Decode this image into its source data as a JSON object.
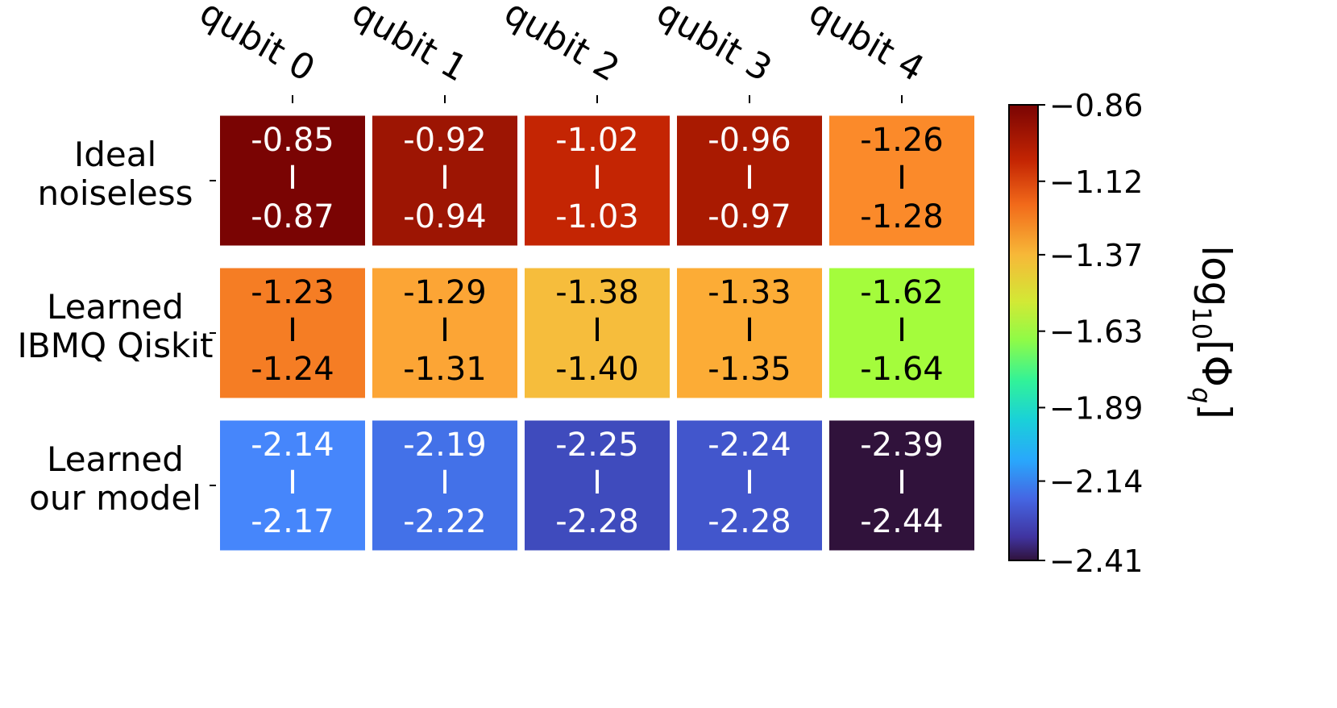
{
  "chart_data": {
    "type": "heatmap",
    "title": "",
    "columns": [
      "qubit 0",
      "qubit 1",
      "qubit 2",
      "qubit 3",
      "qubit 4"
    ],
    "rows": [
      [
        "Ideal",
        "noiseless"
      ],
      [
        "Learned",
        "IBMQ Qiskit"
      ],
      [
        "Learned",
        "our model"
      ]
    ],
    "cells": [
      [
        {
          "upper": "-0.85",
          "lower": "-0.87",
          "separator": "I",
          "color": "#7a0403",
          "text_color": "#ffffff"
        },
        {
          "upper": "-0.92",
          "lower": "-0.94",
          "separator": "I",
          "color": "#9d1503",
          "text_color": "#ffffff"
        },
        {
          "upper": "-1.02",
          "lower": "-1.03",
          "separator": "I",
          "color": "#c42503",
          "text_color": "#ffffff"
        },
        {
          "upper": "-0.96",
          "lower": "-0.97",
          "separator": "I",
          "color": "#a91a01",
          "text_color": "#ffffff"
        },
        {
          "upper": "-1.26",
          "lower": "-1.28",
          "separator": "I",
          "color": "#fb8a2a",
          "text_color": "#000000"
        }
      ],
      [
        {
          "upper": "-1.23",
          "lower": "-1.24",
          "separator": "I",
          "color": "#f57d24",
          "text_color": "#000000"
        },
        {
          "upper": "-1.29",
          "lower": "-1.31",
          "separator": "I",
          "color": "#fca535",
          "text_color": "#000000"
        },
        {
          "upper": "-1.38",
          "lower": "-1.40",
          "separator": "I",
          "color": "#f6bd3c",
          "text_color": "#000000"
        },
        {
          "upper": "-1.33",
          "lower": "-1.35",
          "separator": "I",
          "color": "#fcac36",
          "text_color": "#000000"
        },
        {
          "upper": "-1.62",
          "lower": "-1.64",
          "separator": "I",
          "color": "#a4fc3c",
          "text_color": "#000000"
        }
      ],
      [
        {
          "upper": "-2.14",
          "lower": "-2.17",
          "separator": "I",
          "color": "#4686fb",
          "text_color": "#ffffff"
        },
        {
          "upper": "-2.19",
          "lower": "-2.22",
          "separator": "I",
          "color": "#4371e8",
          "text_color": "#ffffff"
        },
        {
          "upper": "-2.25",
          "lower": "-2.28",
          "separator": "I",
          "color": "#3f4bbd",
          "text_color": "#ffffff"
        },
        {
          "upper": "-2.24",
          "lower": "-2.28",
          "separator": "I",
          "color": "#4256cc",
          "text_color": "#ffffff"
        },
        {
          "upper": "-2.39",
          "lower": "-2.44",
          "separator": "I",
          "color": "#30123b",
          "text_color": "#ffffff"
        }
      ]
    ],
    "colorbar": {
      "colormap": "turbo",
      "range": [
        -2.41,
        -0.86
      ],
      "ticks": [
        "−0.86",
        "−1.12",
        "−1.37",
        "−1.63",
        "−1.89",
        "−2.14",
        "−2.41"
      ],
      "tick_values": [
        -0.86,
        -1.12,
        -1.37,
        -1.63,
        -1.89,
        -2.14,
        -2.41
      ],
      "label_base": "log",
      "label_base_sub": "10",
      "label_symbol": "Φ",
      "label_symbol_sub": "q",
      "label_open": "[",
      "label_close": "]",
      "gradient": [
        {
          "value": -0.86,
          "color": "#7a0403"
        },
        {
          "value": -1.05,
          "color": "#c42503"
        },
        {
          "value": -1.2,
          "color": "#f26a1a"
        },
        {
          "value": -1.37,
          "color": "#f7b838"
        },
        {
          "value": -1.53,
          "color": "#d2e935"
        },
        {
          "value": -1.66,
          "color": "#8ffb47"
        },
        {
          "value": -1.8,
          "color": "#31f299"
        },
        {
          "value": -1.93,
          "color": "#1ad1d8"
        },
        {
          "value": -2.07,
          "color": "#29a7fc"
        },
        {
          "value": -2.2,
          "color": "#4566e3"
        },
        {
          "value": -2.33,
          "color": "#4034a0"
        },
        {
          "value": -2.41,
          "color": "#30123b"
        }
      ]
    }
  }
}
